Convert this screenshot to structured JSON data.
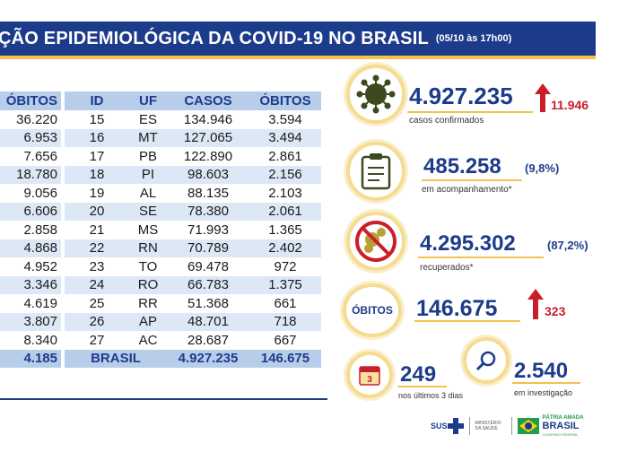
{
  "header": {
    "title": "ÇÃO EPIDEMIOLÓGICA DA COVID-19 NO BRASIL",
    "date": "(05/10 às 17h00)"
  },
  "left_table": {
    "header": "ÓBITOS",
    "values": [
      "36.220",
      "6.953",
      "7.656",
      "18.780",
      "9.056",
      "6.606",
      "2.858",
      "4.868",
      "4.952",
      "3.346",
      "4.619",
      "3.807",
      "8.340",
      "4.185"
    ]
  },
  "right_table": {
    "columns": [
      "ID",
      "UF",
      "CASOS",
      "ÓBITOS"
    ],
    "rows": [
      [
        "15",
        "ES",
        "134.946",
        "3.594"
      ],
      [
        "16",
        "MT",
        "127.065",
        "3.494"
      ],
      [
        "17",
        "PB",
        "122.890",
        "2.861"
      ],
      [
        "18",
        "PI",
        "98.603",
        "2.156"
      ],
      [
        "19",
        "AL",
        "88.135",
        "2.103"
      ],
      [
        "20",
        "SE",
        "78.380",
        "2.061"
      ],
      [
        "21",
        "MS",
        "71.993",
        "1.365"
      ],
      [
        "22",
        "RN",
        "70.789",
        "2.402"
      ],
      [
        "23",
        "TO",
        "69.478",
        "972"
      ],
      [
        "24",
        "RO",
        "66.783",
        "1.375"
      ],
      [
        "25",
        "RR",
        "51.368",
        "661"
      ],
      [
        "26",
        "AP",
        "48.701",
        "718"
      ],
      [
        "27",
        "AC",
        "28.687",
        "667"
      ]
    ],
    "total": {
      "label": "BRASIL",
      "casos": "4.927.235",
      "obitos": "146.675"
    }
  },
  "stats": {
    "confirmed": {
      "value": "4.927.235",
      "increase": "11.946",
      "label": "casos confirmados",
      "icon": "virus-icon"
    },
    "monitoring": {
      "value": "485.258",
      "pct": "(9,8%)",
      "label": "em acompanhamento*",
      "icon": "clipboard-icon"
    },
    "recovered": {
      "value": "4.295.302",
      "pct": "(87,2%)",
      "label": "recuperados*",
      "icon": "no-virus-icon"
    },
    "deaths": {
      "badge": "ÓBITOS",
      "value": "146.675",
      "increase": "323"
    },
    "last_days": {
      "value": "249",
      "label": "nos últimos 3 dias",
      "icon": "calendar-icon",
      "calendar_day": "3"
    },
    "investigation": {
      "value": "2.540",
      "label": "em investigação",
      "icon": "magnifier-icon"
    }
  },
  "footer": {
    "sus": "SUS",
    "ministry": "MINISTÉRIO DA SAÚDE",
    "gov_top": "PÁTRIA AMADA",
    "gov_bottom": "BRASIL",
    "gov_sub": "GOVERNO FEDERAL"
  },
  "colors": {
    "navy": "#1d3b8b",
    "gold": "#f2c14e",
    "red": "#c8202b",
    "row_light": "#dde8f6",
    "row_head": "#b8cdea"
  }
}
